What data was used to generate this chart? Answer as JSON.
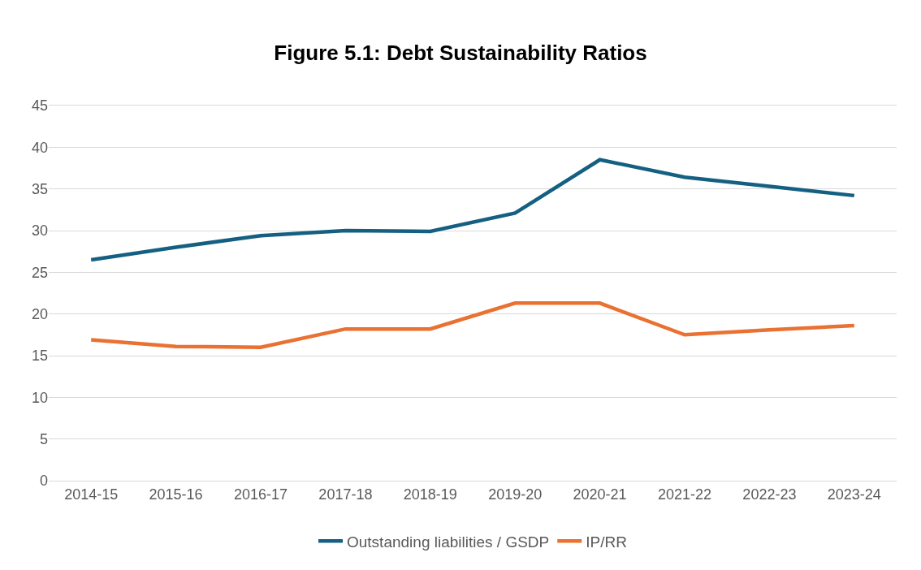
{
  "chart_data": {
    "type": "line",
    "title": "Figure 5.1: Debt Sustainability Ratios",
    "categories": [
      "2014-15",
      "2015-16",
      "2016-17",
      "2017-18",
      "2018-19",
      "2019-20",
      "2020-21",
      "2021-22",
      "2022-23",
      "2023-24"
    ],
    "series": [
      {
        "name": "Outstanding liabilities / GSDP",
        "color": "#156082",
        "values": [
          26.5,
          28.0,
          29.4,
          30.0,
          29.9,
          32.1,
          38.5,
          36.4,
          35.3,
          34.2
        ]
      },
      {
        "name": "IP/RR",
        "color": "#e97132",
        "values": [
          16.9,
          16.1,
          16.0,
          18.2,
          18.2,
          21.3,
          21.3,
          17.5,
          18.1,
          18.6
        ]
      }
    ],
    "ylim": [
      0,
      45
    ],
    "yticks": [
      0,
      5,
      10,
      15,
      20,
      25,
      30,
      35,
      40,
      45
    ],
    "grid": "y",
    "legend": "bottom",
    "marker": "none",
    "line_style": "solid"
  }
}
